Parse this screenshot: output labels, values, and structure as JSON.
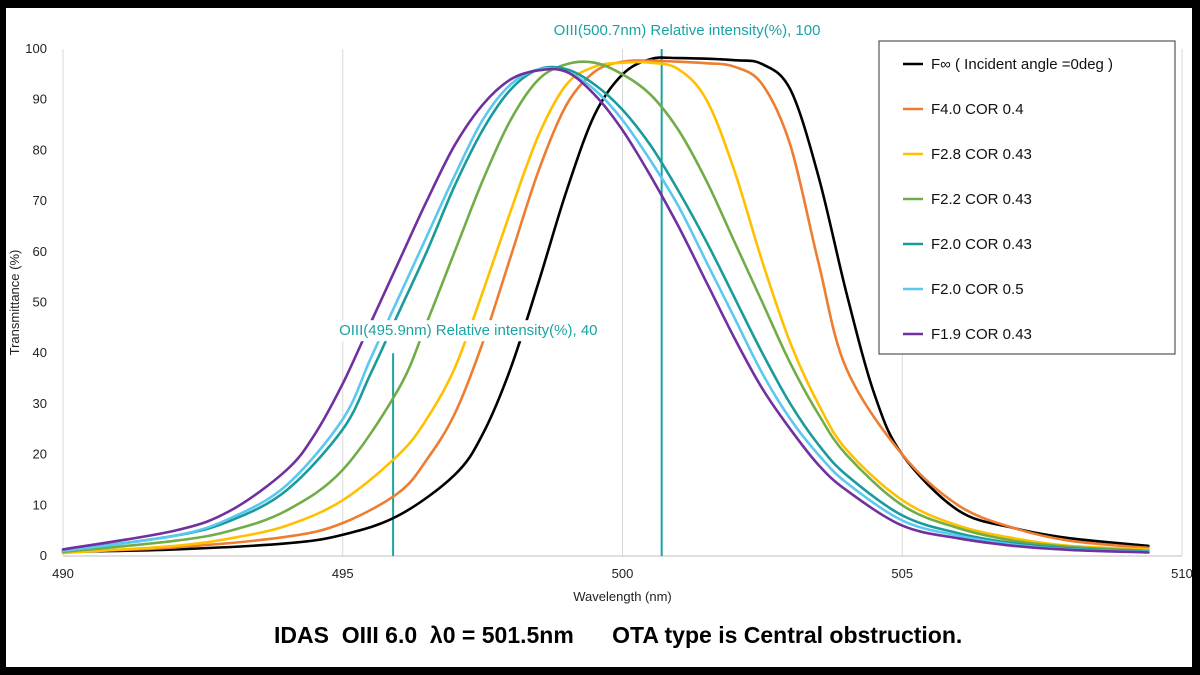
{
  "caption": "IDAS  OIII 6.0  λ0 = 501.5nm      OTA type is Central obstruction.",
  "chart_data": {
    "type": "line",
    "title": "",
    "xlabel": "Wavelength (nm)",
    "ylabel": "Transmittance (%)",
    "xlim": [
      490,
      510
    ],
    "ylim": [
      0,
      100
    ],
    "x_ticks": [
      490,
      495,
      500,
      505,
      510
    ],
    "y_ticks": [
      0,
      10,
      20,
      30,
      40,
      50,
      60,
      70,
      80,
      90,
      100
    ],
    "grid": "vertical",
    "legend_position": "top-right",
    "annotations": [
      {
        "text": "OIII(500.7nm)   Relative intensity(%), 100",
        "x": 500.7,
        "y": 100,
        "color": "#1aa3a3"
      },
      {
        "text": "OIII(495.9nm)   Relative intensity(%), 40",
        "x": 495.9,
        "y": 40,
        "color": "#1aa3a3"
      }
    ],
    "series": [
      {
        "name": "F∞ ( Incident angle =0deg )",
        "color": "#000000",
        "x": [
          490,
          492,
          494,
          495,
          496,
          497,
          497.5,
          498,
          498.5,
          499,
          499.5,
          500,
          500.5,
          501,
          502,
          502.5,
          503,
          503.5,
          504,
          504.5,
          505,
          506,
          507,
          508,
          509.4
        ],
        "y": [
          0.8,
          1.3,
          2.5,
          4.2,
          8,
          16,
          24,
          37,
          54,
          72,
          87,
          95,
          98,
          98.2,
          97.8,
          97,
          92,
          75,
          52,
          32,
          20,
          9,
          5.5,
          3.5,
          2
        ]
      },
      {
        "name": "F4.0 COR 0.4",
        "color": "#ed7d31",
        "x": [
          490,
          492,
          494,
          495,
          496,
          496.5,
          497,
          497.5,
          498,
          498.5,
          499,
          499.5,
          500,
          500.5,
          501,
          501.5,
          502,
          502.5,
          503,
          503.5,
          504,
          505,
          506,
          507,
          508,
          509.4
        ],
        "y": [
          0.8,
          1.7,
          3.8,
          6.5,
          12.5,
          19,
          28,
          42,
          59,
          76,
          89,
          95.5,
          97.5,
          97.7,
          97.5,
          97.2,
          96.5,
          93,
          81,
          58,
          37,
          20,
          10,
          5.5,
          3,
          1.6
        ]
      },
      {
        "name": "F2.8 COR 0.43",
        "color": "#ffc000",
        "x": [
          490,
          492,
          493,
          494,
          495,
          496,
          496.5,
          497,
          497.5,
          498,
          498.5,
          499,
          499.5,
          500,
          500.5,
          501,
          501.5,
          502,
          502.5,
          503,
          503.5,
          504,
          505,
          506,
          507,
          508,
          509.4
        ],
        "y": [
          0.6,
          2,
          3.5,
          6,
          11,
          20,
          27,
          37,
          52,
          68,
          83,
          93,
          96.5,
          97.3,
          97.3,
          96,
          90,
          76,
          58,
          42,
          30,
          21,
          11,
          6,
          3.5,
          2,
          1.3
        ]
      },
      {
        "name": "F2.2 COR 0.43",
        "color": "#70ad47",
        "x": [
          490,
          492,
          493,
          494,
          495,
          496,
          496.5,
          497,
          497.5,
          498,
          498.5,
          499,
          499.5,
          500,
          500.5,
          501,
          501.5,
          502,
          502.5,
          503,
          503.5,
          504,
          505,
          506,
          507,
          508,
          509.4
        ],
        "y": [
          0.8,
          3,
          5,
          9,
          17,
          33,
          46,
          60,
          74,
          86,
          94,
          97,
          97.3,
          95,
          91,
          84,
          74,
          62,
          50,
          38,
          28,
          20,
          10,
          5.5,
          3,
          1.8,
          1
        ]
      },
      {
        "name": "F2.0 COR 0.43",
        "color": "#1a9b9b",
        "x": [
          490,
          492,
          493,
          494,
          495,
          495.5,
          496,
          496.5,
          497,
          497.5,
          498,
          498.5,
          499,
          499.5,
          500,
          500.5,
          501,
          501.5,
          502,
          502.5,
          503,
          503.5,
          504,
          505,
          506,
          507,
          508,
          509.4
        ],
        "y": [
          1,
          4,
          7,
          13,
          25,
          36,
          48,
          60,
          73,
          84,
          92,
          96,
          96,
          93,
          88,
          81,
          72,
          62,
          51,
          40,
          30,
          22,
          16,
          8,
          4.5,
          2.5,
          1.5,
          0.9
        ]
      },
      {
        "name": "F2.0 COR 0.5",
        "color": "#5bc8f0",
        "x": [
          490,
          492,
          493,
          494,
          495,
          495.5,
          496,
          496.5,
          497,
          497.5,
          498,
          498.5,
          499,
          499.5,
          500,
          500.5,
          501,
          501.5,
          502,
          502.5,
          503,
          503.5,
          504,
          505,
          506,
          507,
          508,
          509.4
        ],
        "y": [
          1,
          4,
          7.5,
          14,
          27,
          39,
          51,
          63,
          75,
          86,
          93,
          96,
          95.5,
          92,
          86,
          78,
          69,
          58,
          47,
          36,
          27,
          20,
          14.5,
          7,
          4,
          2.2,
          1.3,
          0.8
        ]
      },
      {
        "name": "F1.9 COR 0.43",
        "color": "#7030a0",
        "x": [
          490,
          492,
          493,
          494,
          494.5,
          495,
          495.5,
          496,
          496.5,
          497,
          497.5,
          498,
          498.5,
          499,
          499.5,
          500,
          500.5,
          501,
          501.5,
          502,
          502.5,
          503,
          503.5,
          504,
          505,
          506,
          507,
          508,
          509.4
        ],
        "y": [
          1.3,
          5,
          9,
          17,
          24,
          34,
          46,
          58,
          70,
          81,
          89,
          94,
          95.8,
          95.5,
          91,
          84,
          75,
          65,
          54,
          43,
          33,
          25,
          18,
          13,
          6,
          3.5,
          2,
          1.2,
          0.7
        ]
      }
    ]
  }
}
